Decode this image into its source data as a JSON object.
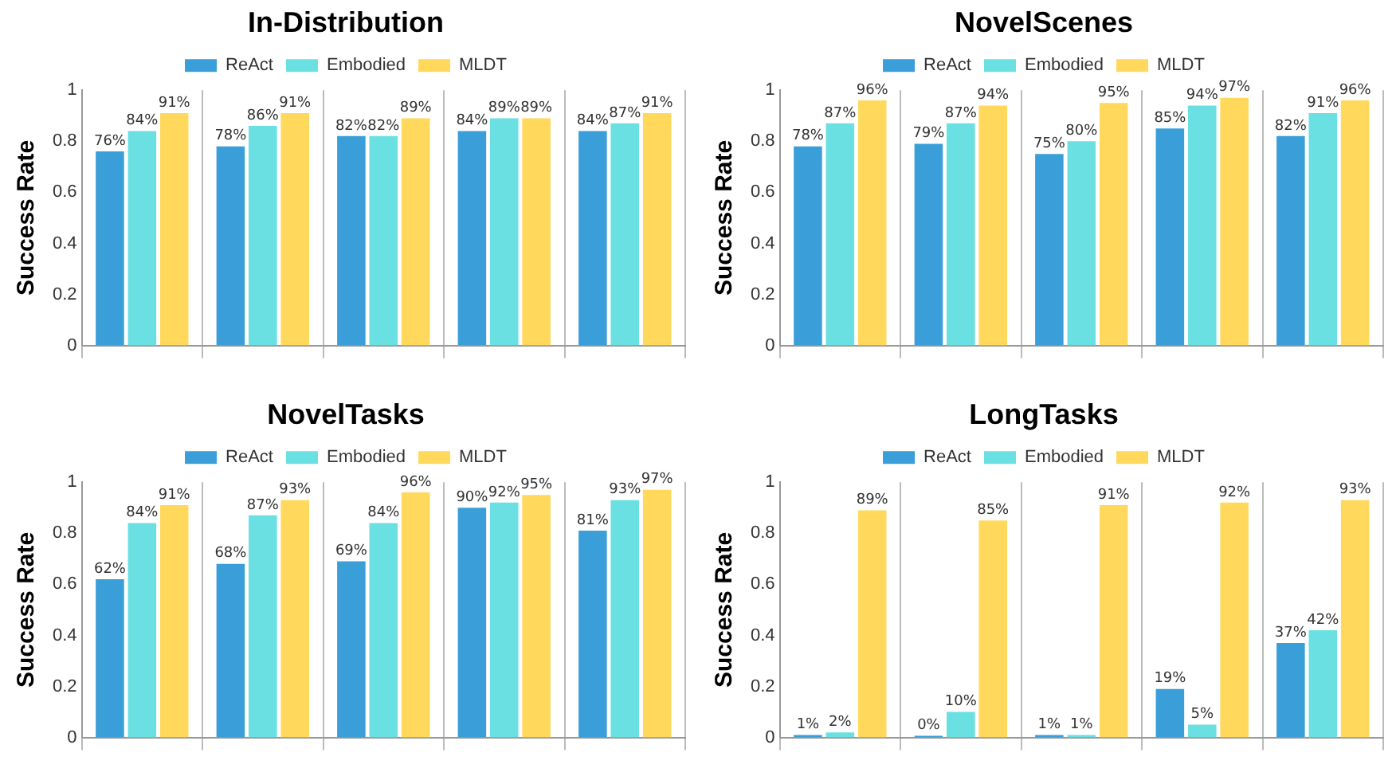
{
  "chart_data": [
    {
      "type": "bar",
      "title": "In-Distribution",
      "ylabel": "Success Rate",
      "categories": [
        null,
        null,
        null,
        null,
        null
      ],
      "ylim": [
        0,
        1
      ],
      "yticks": [
        0,
        0.2,
        0.4,
        0.6,
        0.8,
        1
      ],
      "grid": "x",
      "legend": "top",
      "series": [
        {
          "name": "ReAct",
          "color": "#3a9fd8",
          "values": [
            0.76,
            0.78,
            0.82,
            0.84,
            0.84
          ],
          "value_labels": [
            "76%",
            "78%",
            "82%",
            "84%",
            "84%"
          ]
        },
        {
          "name": "Embodied",
          "color": "#6ae0e2",
          "values": [
            0.84,
            0.86,
            0.82,
            0.89,
            0.87
          ],
          "value_labels": [
            "84%",
            "86%",
            "82%",
            "89%",
            "87%"
          ]
        },
        {
          "name": "MLDT",
          "color": "#ffd85c",
          "values": [
            0.91,
            0.91,
            0.89,
            0.89,
            0.91
          ],
          "value_labels": [
            "91%",
            "91%",
            "89%",
            "89%",
            "91%"
          ]
        }
      ]
    },
    {
      "type": "bar",
      "title": "NovelScenes",
      "ylabel": "Success Rate",
      "categories": [
        null,
        null,
        null,
        null,
        null
      ],
      "ylim": [
        0,
        1
      ],
      "yticks": [
        0,
        0.2,
        0.4,
        0.6,
        0.8,
        1
      ],
      "grid": "x",
      "legend": "top",
      "series": [
        {
          "name": "ReAct",
          "color": "#3a9fd8",
          "values": [
            0.78,
            0.79,
            0.75,
            0.85,
            0.82
          ],
          "value_labels": [
            "78%",
            "79%",
            "75%",
            "85%",
            "82%"
          ]
        },
        {
          "name": "Embodied",
          "color": "#6ae0e2",
          "values": [
            0.87,
            0.87,
            0.8,
            0.94,
            0.91
          ],
          "value_labels": [
            "87%",
            "87%",
            "80%",
            "94%",
            "91%"
          ]
        },
        {
          "name": "MLDT",
          "color": "#ffd85c",
          "values": [
            0.96,
            0.94,
            0.95,
            0.97,
            0.96
          ],
          "value_labels": [
            "96%",
            "94%",
            "95%",
            "97%",
            "96%"
          ]
        }
      ]
    },
    {
      "type": "bar",
      "title": "NovelTasks",
      "ylabel": "Success Rate",
      "categories": [
        null,
        null,
        null,
        null,
        null
      ],
      "ylim": [
        0,
        1
      ],
      "yticks": [
        0,
        0.2,
        0.4,
        0.6,
        0.8,
        1
      ],
      "grid": "x",
      "legend": "top",
      "series": [
        {
          "name": "ReAct",
          "color": "#3a9fd8",
          "values": [
            0.62,
            0.68,
            0.69,
            0.9,
            0.81
          ],
          "value_labels": [
            "62%",
            "68%",
            "69%",
            "90%",
            "81%"
          ]
        },
        {
          "name": "Embodied",
          "color": "#6ae0e2",
          "values": [
            0.84,
            0.87,
            0.84,
            0.92,
            0.93
          ],
          "value_labels": [
            "84%",
            "87%",
            "84%",
            "92%",
            "93%"
          ]
        },
        {
          "name": "MLDT",
          "color": "#ffd85c",
          "values": [
            0.91,
            0.93,
            0.96,
            0.95,
            0.97
          ],
          "value_labels": [
            "91%",
            "93%",
            "96%",
            "95%",
            "97%"
          ]
        }
      ]
    },
    {
      "type": "bar",
      "title": "LongTasks",
      "ylabel": "Success Rate",
      "categories": [
        null,
        null,
        null,
        null,
        null
      ],
      "ylim": [
        0,
        1
      ],
      "yticks": [
        0,
        0.2,
        0.4,
        0.6,
        0.8,
        1
      ],
      "grid": "x",
      "legend": "top",
      "series": [
        {
          "name": "ReAct",
          "color": "#3a9fd8",
          "values": [
            0.01,
            0,
            0.01,
            0.19,
            0.37
          ],
          "value_labels": [
            "1%",
            "0%",
            "1%",
            "19%",
            "37%"
          ]
        },
        {
          "name": "Embodied",
          "color": "#6ae0e2",
          "values": [
            0.02,
            0.1,
            0.01,
            0.05,
            0.42
          ],
          "value_labels": [
            "2%",
            "10%",
            "1%",
            "5%",
            "42%"
          ]
        },
        {
          "name": "MLDT",
          "color": "#ffd85c",
          "values": [
            0.89,
            0.85,
            0.91,
            0.92,
            0.93
          ],
          "value_labels": [
            "89%",
            "85%",
            "91%",
            "92%",
            "93%"
          ]
        }
      ]
    }
  ]
}
